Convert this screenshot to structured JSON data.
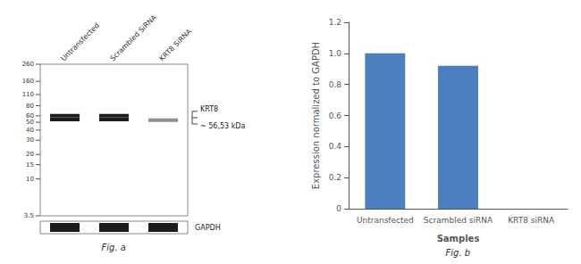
{
  "chart_data": [
    {
      "type": "blot",
      "categories": [
        "Untransfected",
        "Scrambled SiRNA",
        "KRT8 SiRNA"
      ],
      "values": [
        [
          60,
          54
        ],
        [
          60,
          54
        ],
        [
          53
        ]
      ],
      "colors": [
        "#1c1c1c",
        "#1c1c1c",
        "#909090"
      ],
      "ylim": [
        3.5,
        260
      ],
      "yticks": [
        260,
        160,
        110,
        80,
        60,
        50,
        40,
        30,
        20,
        15,
        10,
        3.5
      ],
      "log": "y",
      "bracket_labels": [
        "KRT8",
        "~ 56,53 kDa"
      ],
      "control_label": "GAPDH",
      "control_color": "#1c1c1c",
      "caption": "Fig. a"
    },
    {
      "type": "bar",
      "categories": [
        "Untransfected",
        "Scrambled siRNA",
        "KRT8 siRNA"
      ],
      "values": [
        1.0,
        0.92,
        0.0
      ],
      "color": "#4c7fc0",
      "xlabel": "Samples",
      "ylabel": "Expression normalized to GAPDH",
      "ylim": [
        0,
        1.2
      ],
      "yticks": [
        0,
        0.2,
        0.4,
        0.6,
        0.8,
        {
          "value": 1.0,
          "label": "1.0"
        },
        1.2
      ],
      "grid": false,
      "caption": "Fig. b"
    }
  ]
}
